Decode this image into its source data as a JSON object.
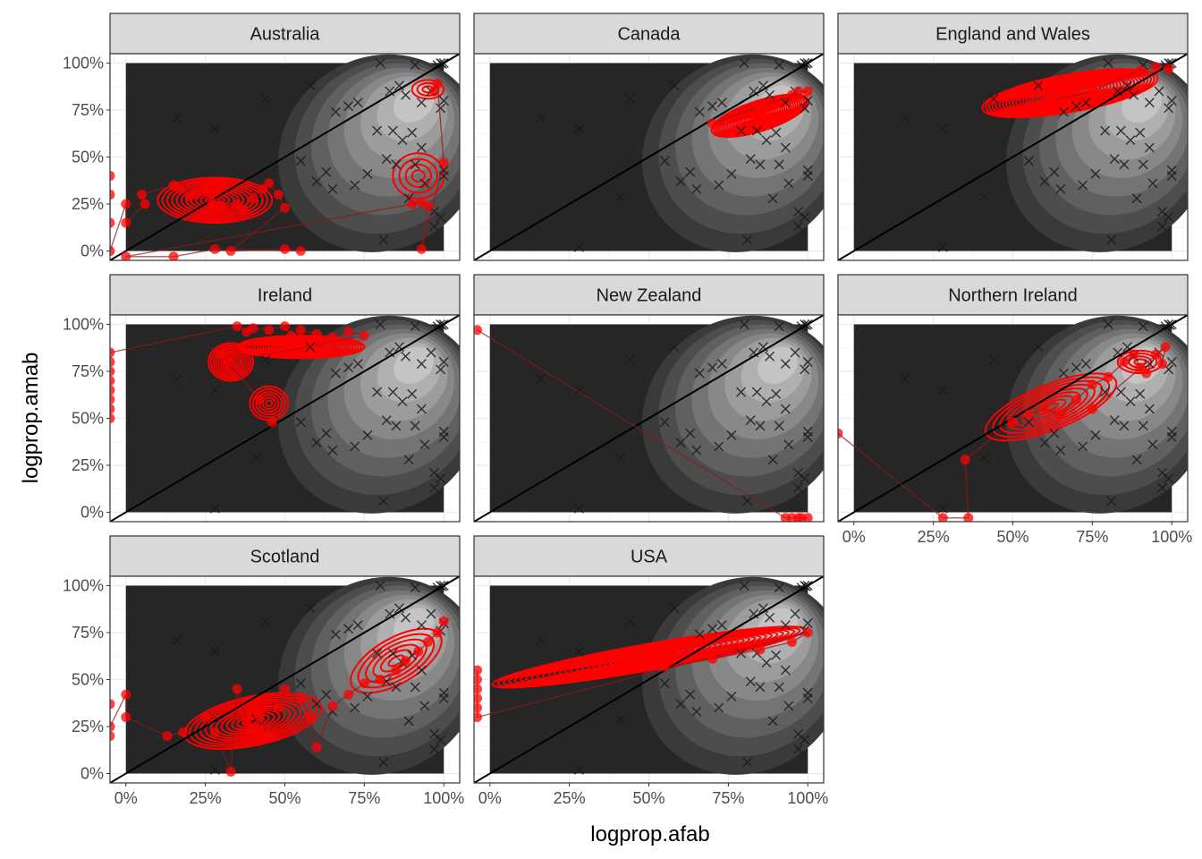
{
  "colors": {
    "panel_border": "#333333",
    "strip_fill": "#d9d9d9",
    "grid_major": "#ebebeb",
    "grid_minor": "#f5f5f5",
    "raster_dark": "#262626",
    "density_fill_levels": [
      "#3a3a3a",
      "#4d4d4d",
      "#606060",
      "#747474",
      "#888888",
      "#9c9c9c",
      "#b0b0b0",
      "#c4c4c4"
    ],
    "reference_points": "#1a1a1a",
    "country_overlay": "#ff0000",
    "identity_line": "#000000"
  },
  "chart_data": {
    "type": "scatter",
    "xlabel": "logprop.afab",
    "ylabel": "logprop.amab",
    "xlim": [
      -0.05,
      1.05
    ],
    "ylim": [
      -0.05,
      1.05
    ],
    "x_ticks": [
      0,
      0.25,
      0.5,
      0.75,
      1
    ],
    "y_ticks": [
      0,
      0.25,
      0.5,
      0.75,
      1
    ],
    "x_tick_labels": [
      "0%",
      "25%",
      "50%",
      "75%",
      "100%"
    ],
    "y_tick_labels": [
      "0%",
      "25%",
      "50%",
      "75%",
      "100%"
    ],
    "grid": true,
    "identity_line": {
      "slope": 1,
      "intercept": 0
    },
    "background_points": [
      [
        0.16,
        0.71
      ],
      [
        0.28,
        0.65
      ],
      [
        0.28,
        0.02
      ],
      [
        0.44,
        0.81
      ],
      [
        0.41,
        0.29
      ],
      [
        0.55,
        0.48
      ],
      [
        0.58,
        0.88
      ],
      [
        0.6,
        0.37
      ],
      [
        0.63,
        0.42
      ],
      [
        0.65,
        0.33
      ],
      [
        0.66,
        0.74
      ],
      [
        0.7,
        0.77
      ],
      [
        0.72,
        0.35
      ],
      [
        0.73,
        0.79
      ],
      [
        0.76,
        0.41
      ],
      [
        0.79,
        0.64
      ],
      [
        0.8,
        1.0
      ],
      [
        0.81,
        0.06
      ],
      [
        0.82,
        0.49
      ],
      [
        0.83,
        0.85
      ],
      [
        0.84,
        0.64
      ],
      [
        0.85,
        0.46
      ],
      [
        0.86,
        0.88
      ],
      [
        0.87,
        0.59
      ],
      [
        0.88,
        0.83
      ],
      [
        0.89,
        0.28
      ],
      [
        0.9,
        0.63
      ],
      [
        0.91,
        0.46
      ],
      [
        0.91,
        0.99
      ],
      [
        0.93,
        0.79
      ],
      [
        0.93,
        0.55
      ],
      [
        0.94,
        0.36
      ],
      [
        0.96,
        0.85
      ],
      [
        0.97,
        0.13
      ],
      [
        0.97,
        0.21
      ],
      [
        0.98,
        0.99
      ],
      [
        0.99,
        1.0
      ],
      [
        0.99,
        0.76
      ],
      [
        1.0,
        0.43
      ],
      [
        1.0,
        0.4
      ],
      [
        1.0,
        0.8
      ],
      [
        0.99,
        0.18
      ],
      [
        1.0,
        1.0
      ],
      [
        0.995,
        0.995
      ]
    ],
    "panels": [
      {
        "name": "Australia",
        "points": [
          [
            -0.05,
            0.4
          ],
          [
            -0.05,
            0.3
          ],
          [
            -0.05,
            0.15
          ],
          [
            -0.05,
            0.0
          ],
          [
            0.0,
            0.25
          ],
          [
            0.0,
            0.15
          ],
          [
            0.06,
            0.25
          ],
          [
            0.05,
            0.3
          ],
          [
            0.15,
            0.35
          ],
          [
            0.17,
            0.33
          ],
          [
            0.2,
            0.29
          ],
          [
            0.22,
            0.3
          ],
          [
            0.25,
            0.32
          ],
          [
            0.27,
            0.26
          ],
          [
            0.3,
            0.24
          ],
          [
            0.3,
            0.35
          ],
          [
            0.35,
            0.25
          ],
          [
            0.37,
            0.22
          ],
          [
            0.4,
            0.28
          ],
          [
            0.43,
            0.33
          ],
          [
            0.45,
            0.36
          ],
          [
            0.48,
            0.3
          ],
          [
            0.5,
            0.23
          ],
          [
            0.33,
            0.0
          ],
          [
            0.5,
            0.01
          ],
          [
            0.55,
            0.0
          ],
          [
            0.28,
            0.01
          ],
          [
            0.15,
            -0.03
          ],
          [
            0.0,
            -0.03
          ],
          [
            0.9,
            0.25
          ],
          [
            0.93,
            0.26
          ],
          [
            0.95,
            0.24
          ],
          [
            0.93,
            0.01
          ],
          [
            1.0,
            0.47
          ],
          [
            0.98,
            0.89
          ],
          [
            0.97,
            0.85
          ]
        ],
        "density_centers": [
          {
            "cx": 0.28,
            "cy": 0.27,
            "sx": 0.18,
            "sy": 0.12,
            "levels": 12
          },
          {
            "cx": 0.92,
            "cy": 0.4,
            "sx": 0.08,
            "sy": 0.12,
            "levels": 4
          },
          {
            "cx": 0.95,
            "cy": 0.86,
            "sx": 0.05,
            "sy": 0.05,
            "levels": 3
          }
        ]
      },
      {
        "name": "Canada",
        "points": [
          [
            0.95,
            0.83
          ],
          [
            0.97,
            0.85
          ],
          [
            1.0,
            0.85
          ],
          [
            0.85,
            0.77
          ],
          [
            0.7,
            0.68
          ]
        ],
        "density_centers": [
          {
            "cx": 0.85,
            "cy": 0.72,
            "sx": 0.16,
            "sy": 0.08,
            "levels": 22,
            "angle": 18
          }
        ]
      },
      {
        "name": "England and Wales",
        "points": [
          [
            0.99,
            0.97
          ],
          [
            0.95,
            0.98
          ],
          [
            0.9,
            0.96
          ],
          [
            0.85,
            0.93
          ],
          [
            0.75,
            0.85
          ],
          [
            0.62,
            0.8
          ]
        ],
        "density_centers": [
          {
            "cx": 0.68,
            "cy": 0.84,
            "sx": 0.28,
            "sy": 0.1,
            "levels": 26,
            "angle": 10
          }
        ]
      },
      {
        "name": "Ireland",
        "points": [
          [
            -0.05,
            0.5
          ],
          [
            -0.05,
            0.55
          ],
          [
            -0.05,
            0.6
          ],
          [
            -0.05,
            0.65
          ],
          [
            -0.05,
            0.7
          ],
          [
            -0.05,
            0.75
          ],
          [
            -0.05,
            0.8
          ],
          [
            -0.05,
            0.85
          ],
          [
            0.35,
            0.99
          ],
          [
            0.38,
            0.96
          ],
          [
            0.4,
            0.98
          ],
          [
            0.45,
            0.97
          ],
          [
            0.5,
            0.99
          ],
          [
            0.52,
            0.94
          ],
          [
            0.55,
            0.97
          ],
          [
            0.6,
            0.95
          ],
          [
            0.65,
            0.93
          ],
          [
            0.7,
            0.96
          ],
          [
            0.75,
            0.94
          ],
          [
            0.32,
            0.8
          ],
          [
            0.3,
            0.84
          ],
          [
            0.42,
            0.6
          ],
          [
            0.46,
            0.48
          ]
        ],
        "density_centers": [
          {
            "cx": 0.55,
            "cy": 0.88,
            "sx": 0.2,
            "sy": 0.06,
            "levels": 22
          },
          {
            "cx": 0.33,
            "cy": 0.8,
            "sx": 0.07,
            "sy": 0.1,
            "levels": 9
          },
          {
            "cx": 0.45,
            "cy": 0.58,
            "sx": 0.06,
            "sy": 0.09,
            "levels": 6
          }
        ]
      },
      {
        "name": "New Zealand",
        "points": [
          [
            -0.04,
            0.97
          ],
          [
            0.93,
            -0.03
          ],
          [
            0.95,
            -0.03
          ],
          [
            0.97,
            -0.03
          ],
          [
            1.0,
            -0.03
          ],
          [
            0.98,
            -0.03
          ]
        ],
        "density_centers": []
      },
      {
        "name": "Northern Ireland",
        "points": [
          [
            -0.05,
            0.42
          ],
          [
            0.28,
            -0.03
          ],
          [
            0.36,
            -0.03
          ],
          [
            0.35,
            0.28
          ],
          [
            0.5,
            0.48
          ],
          [
            0.55,
            0.52
          ],
          [
            0.6,
            0.55
          ],
          [
            0.65,
            0.52
          ],
          [
            0.7,
            0.6
          ],
          [
            0.75,
            0.68
          ],
          [
            0.8,
            0.72
          ],
          [
            0.85,
            0.8
          ],
          [
            0.88,
            0.84
          ],
          [
            0.9,
            0.77
          ],
          [
            0.92,
            0.74
          ],
          [
            0.95,
            0.84
          ],
          [
            0.97,
            0.79
          ],
          [
            0.98,
            0.88
          ],
          [
            0.75,
            0.55
          ]
        ],
        "density_centers": [
          {
            "cx": 0.62,
            "cy": 0.56,
            "sx": 0.22,
            "sy": 0.12,
            "levels": 9,
            "angle": 22
          },
          {
            "cx": 0.9,
            "cy": 0.8,
            "sx": 0.07,
            "sy": 0.06,
            "levels": 4
          }
        ]
      },
      {
        "name": "Scotland",
        "points": [
          [
            -0.05,
            0.37
          ],
          [
            -0.05,
            0.2
          ],
          [
            -0.05,
            0.25
          ],
          [
            0.0,
            0.42
          ],
          [
            0.0,
            0.3
          ],
          [
            0.13,
            0.2
          ],
          [
            0.18,
            0.22
          ],
          [
            0.25,
            0.3
          ],
          [
            0.28,
            0.22
          ],
          [
            0.33,
            0.01
          ],
          [
            0.35,
            0.45
          ],
          [
            0.38,
            0.28
          ],
          [
            0.4,
            0.24
          ],
          [
            0.42,
            0.3
          ],
          [
            0.45,
            0.2
          ],
          [
            0.48,
            0.35
          ],
          [
            0.5,
            0.45
          ],
          [
            0.55,
            0.4
          ],
          [
            0.58,
            0.3
          ],
          [
            0.6,
            0.14
          ],
          [
            0.65,
            0.36
          ],
          [
            0.7,
            0.42
          ],
          [
            0.75,
            0.48
          ],
          [
            0.8,
            0.5
          ],
          [
            0.85,
            0.55
          ],
          [
            0.88,
            0.6
          ],
          [
            0.92,
            0.65
          ],
          [
            0.95,
            0.7
          ],
          [
            0.98,
            0.75
          ],
          [
            1.0,
            0.81
          ]
        ],
        "density_centers": [
          {
            "cx": 0.4,
            "cy": 0.28,
            "sx": 0.22,
            "sy": 0.13,
            "levels": 13,
            "angle": 12
          },
          {
            "cx": 0.85,
            "cy": 0.6,
            "sx": 0.16,
            "sy": 0.12,
            "levels": 6,
            "angle": 30
          }
        ]
      },
      {
        "name": "USA",
        "points": [
          [
            -0.04,
            0.55
          ],
          [
            -0.04,
            0.5
          ],
          [
            -0.04,
            0.45
          ],
          [
            -0.04,
            0.4
          ],
          [
            -0.04,
            0.35
          ],
          [
            -0.04,
            0.3
          ],
          [
            1.0,
            0.75
          ],
          [
            0.95,
            0.7
          ],
          [
            0.85,
            0.66
          ],
          [
            0.7,
            0.61
          ],
          [
            0.55,
            0.57
          ]
        ],
        "density_centers": [
          {
            "cx": 0.5,
            "cy": 0.62,
            "sx": 0.5,
            "sy": 0.07,
            "levels": 28,
            "angle": 10
          }
        ]
      }
    ]
  }
}
